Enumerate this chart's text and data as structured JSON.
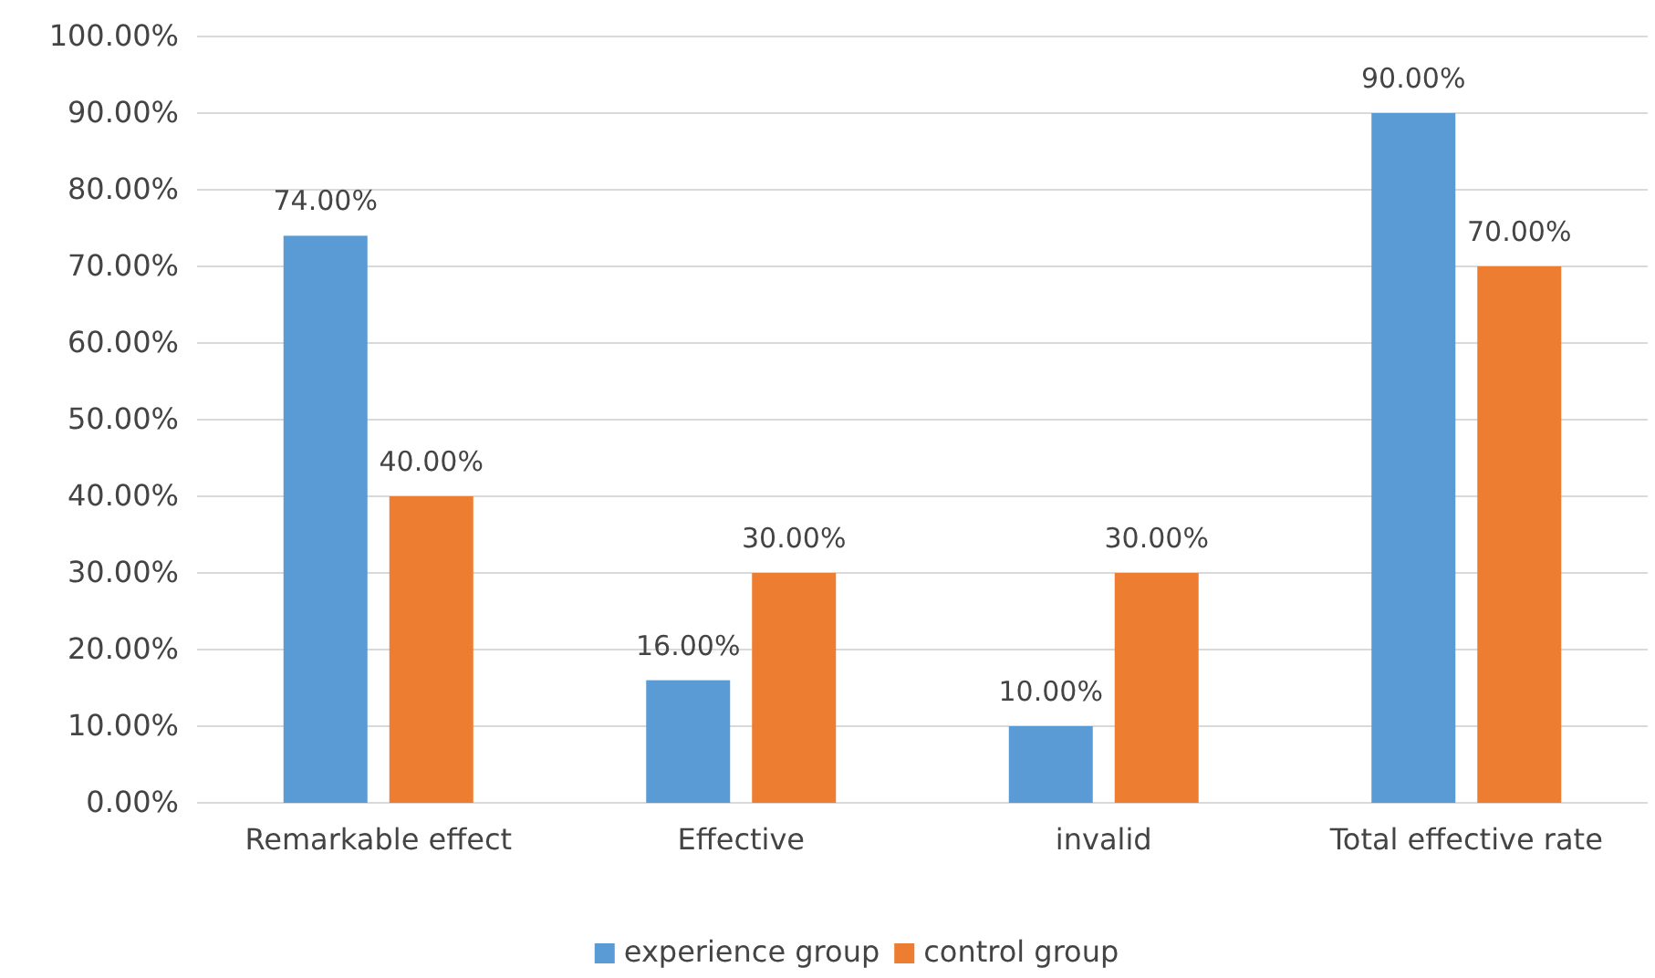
{
  "chart_data": {
    "type": "bar",
    "categories": [
      "Remarkable effect",
      "Effective",
      "invalid",
      "Total effective rate"
    ],
    "series": [
      {
        "name": "experience group",
        "color": "#5b9bd5",
        "values": [
          74,
          16,
          10,
          90
        ],
        "value_labels": [
          "74.00%",
          "16.00%",
          "10.00%",
          "90.00%"
        ]
      },
      {
        "name": "control group",
        "color": "#ed7d31",
        "values": [
          40,
          30,
          30,
          70
        ],
        "value_labels": [
          "40.00%",
          "30.00%",
          "30.00%",
          "70.00%"
        ]
      }
    ],
    "ylim": [
      0,
      100
    ],
    "yticks": [
      {
        "value": 0,
        "label": "0.00%"
      },
      {
        "value": 10,
        "label": "10.00%"
      },
      {
        "value": 20,
        "label": "20.00%"
      },
      {
        "value": 30,
        "label": "30.00%"
      },
      {
        "value": 40,
        "label": "40.00%"
      },
      {
        "value": 50,
        "label": "50.00%"
      },
      {
        "value": 60,
        "label": "60.00%"
      },
      {
        "value": 70,
        "label": "70.00%"
      },
      {
        "value": 80,
        "label": "80.00%"
      },
      {
        "value": 90,
        "label": "90.00%"
      },
      {
        "value": 100,
        "label": "100.00%"
      }
    ],
    "grid": "y",
    "legend": "bottom"
  }
}
